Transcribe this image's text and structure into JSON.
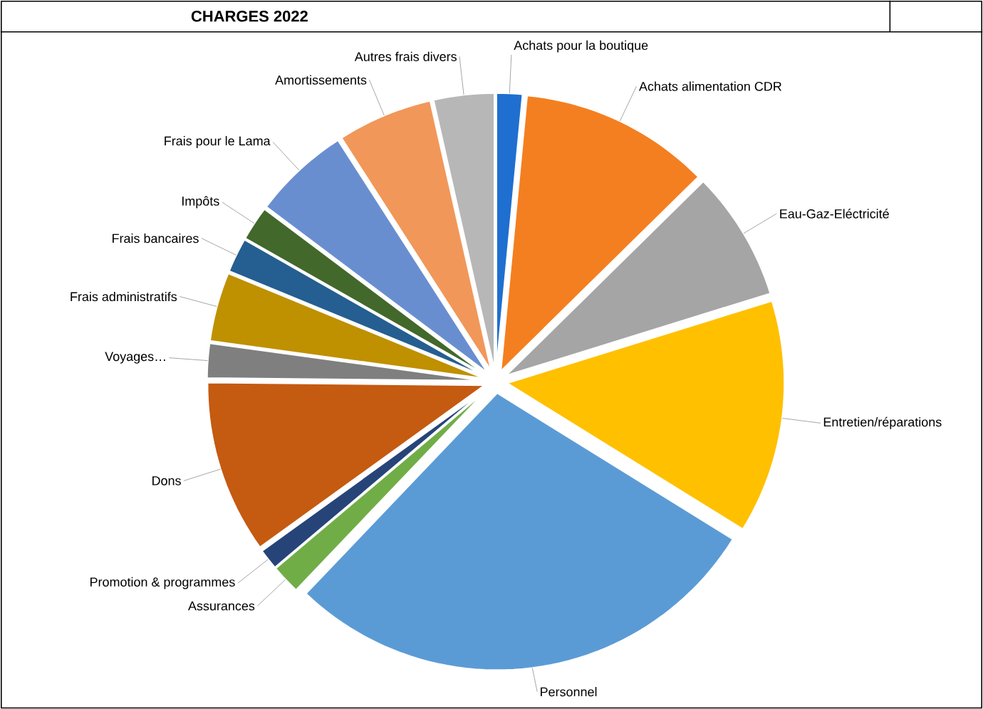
{
  "chart_data": {
    "type": "pie",
    "title": "CHARGES 2022",
    "categories": [
      "Achats pour la boutique",
      "Achats alimentation CDR",
      "Eau-Gaz-Eléctricité",
      "Entretien/réparations",
      "Personnel",
      "Assurances",
      "Promotion & programmes",
      "Dons",
      "Voyages…",
      "Frais administratifs",
      "Frais bancaires",
      "Impôts",
      "Frais pour le Lama",
      "Amortissements",
      "Autres frais divers"
    ],
    "values": [
      1.5,
      11,
      7.5,
      13.5,
      28,
      1.7,
      1.2,
      10,
      2,
      4,
      2,
      2,
      5.6,
      5.5,
      3.5
    ],
    "colors": [
      "#1f6fd0",
      "#f47f20",
      "#a5a5a5",
      "#ffc000",
      "#5b9bd5",
      "#70ad47",
      "#264478",
      "#c55a11",
      "#7f7f7f",
      "#bf9000",
      "#255e91",
      "#43682b",
      "#698ed0",
      "#f1975a",
      "#b7b7b7"
    ]
  }
}
